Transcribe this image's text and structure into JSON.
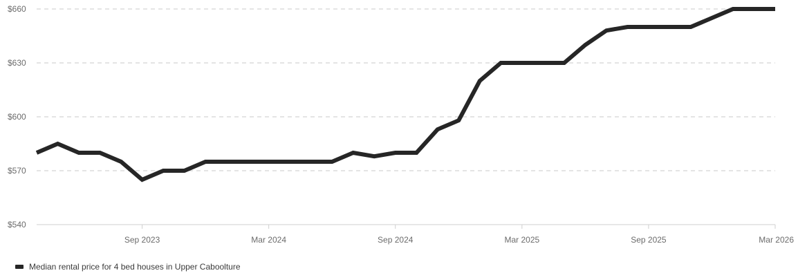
{
  "chart_data": {
    "type": "line",
    "title": "",
    "xlabel": "",
    "ylabel": "",
    "ylim": [
      540,
      660
    ],
    "y_ticks": [
      {
        "value": 660,
        "label": "$660"
      },
      {
        "value": 630,
        "label": "$630"
      },
      {
        "value": 600,
        "label": "$600"
      },
      {
        "value": 570,
        "label": "$570"
      },
      {
        "value": 540,
        "label": "$540"
      }
    ],
    "xlim": [
      "2023-04",
      "2026-03"
    ],
    "x_ticks": [
      {
        "value": "2023-09",
        "label": "Sep 2023"
      },
      {
        "value": "2024-03",
        "label": "Mar 2024"
      },
      {
        "value": "2024-09",
        "label": "Sep 2024"
      },
      {
        "value": "2025-03",
        "label": "Mar 2025"
      },
      {
        "value": "2025-09",
        "label": "Sep 2025"
      },
      {
        "value": "2026-03",
        "label": "Mar 2026"
      }
    ],
    "grid": "horizontal-dashed",
    "legend_position": "bottom-left",
    "series": [
      {
        "name": "Median rental price for 4 bed houses in Upper Caboolture",
        "color": "#262626",
        "x": [
          "2023-04",
          "2023-05",
          "2023-06",
          "2023-07",
          "2023-08",
          "2023-09",
          "2023-10",
          "2023-11",
          "2023-12",
          "2024-01",
          "2024-02",
          "2024-03",
          "2024-04",
          "2024-05",
          "2024-06",
          "2024-07",
          "2024-08",
          "2024-09",
          "2024-10",
          "2024-11",
          "2024-12",
          "2025-01",
          "2025-02",
          "2025-03",
          "2025-04",
          "2025-05",
          "2025-06",
          "2025-07",
          "2025-08",
          "2025-09",
          "2025-10",
          "2025-11",
          "2025-12",
          "2026-01",
          "2026-02",
          "2026-03"
        ],
        "values": [
          580,
          585,
          580,
          580,
          575,
          565,
          570,
          570,
          575,
          575,
          575,
          575,
          575,
          575,
          575,
          580,
          578,
          580,
          580,
          593,
          598,
          620,
          630,
          630,
          630,
          630,
          640,
          648,
          650,
          650,
          650,
          650,
          655,
          660,
          660,
          660
        ]
      }
    ]
  }
}
